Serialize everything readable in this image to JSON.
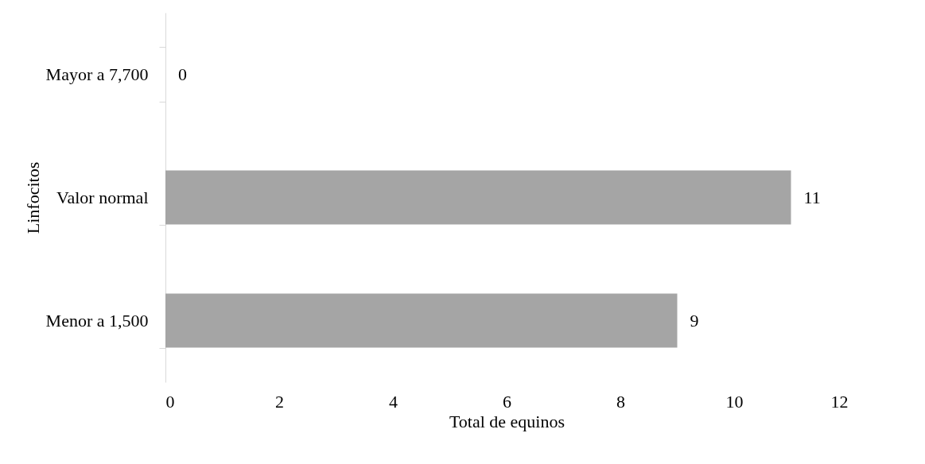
{
  "chart_data": {
    "type": "bar",
    "orientation": "horizontal",
    "xlabel": "Total de equinos",
    "ylabel": "Linfocitos",
    "categories": [
      "Mayor a 7,700",
      "Valor normal",
      "Menor a 1,500"
    ],
    "values": [
      0,
      11,
      9
    ],
    "color": "#a5a5a5",
    "xlim": [
      0,
      12
    ],
    "xticks": [
      0,
      2,
      4,
      6,
      8,
      10,
      12
    ],
    "grid": false,
    "data_labels": true
  }
}
